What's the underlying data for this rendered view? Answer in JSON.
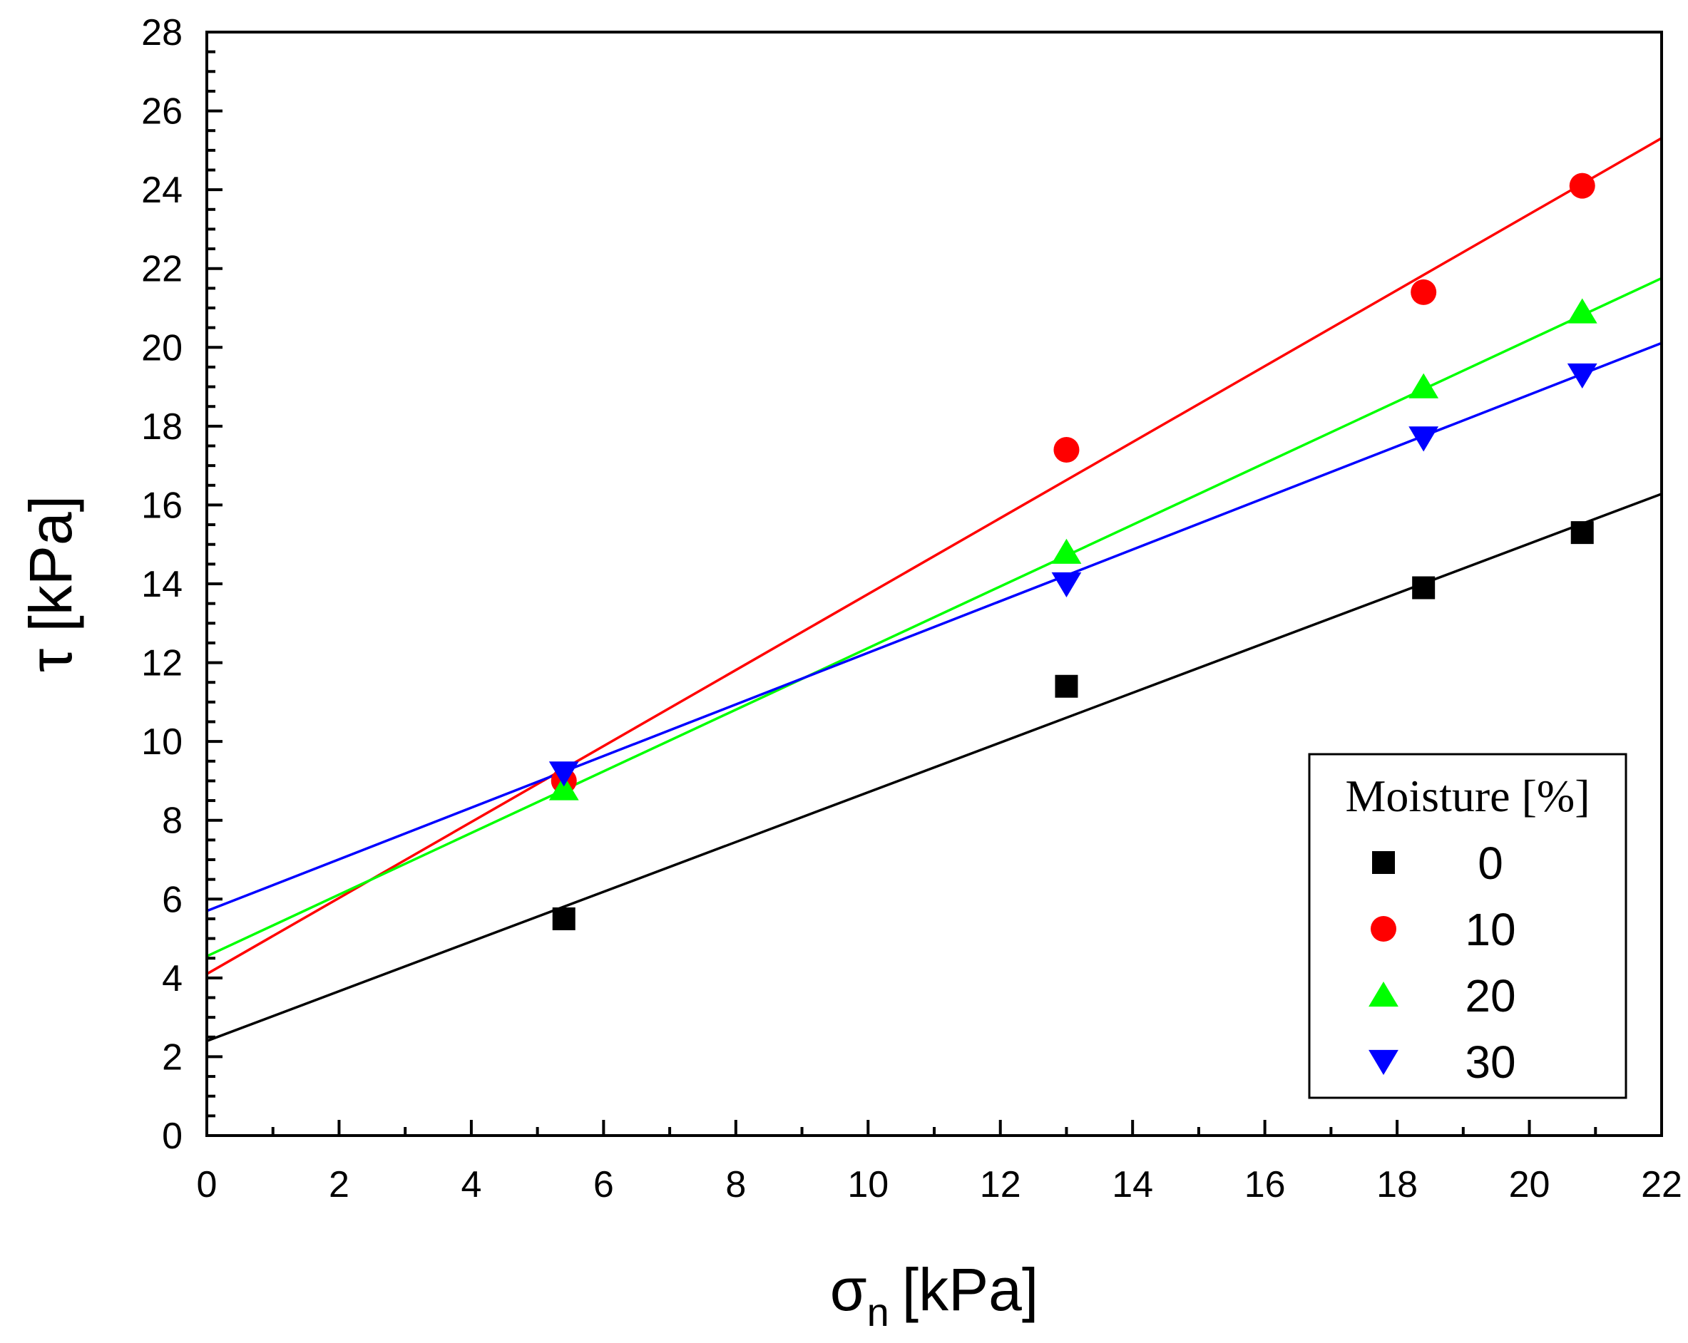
{
  "chart_data": {
    "type": "scatter",
    "title": "",
    "xlabel": "σ",
    "xlabel_sub": "n",
    "xlabel_unit": "[kPa]",
    "ylabel": "τ [kPa]",
    "xlim": [
      0,
      22
    ],
    "ylim": [
      0,
      28
    ],
    "x_ticks": [
      0,
      2,
      4,
      6,
      8,
      10,
      12,
      14,
      16,
      18,
      20,
      22
    ],
    "y_ticks": [
      0,
      2,
      4,
      6,
      8,
      10,
      12,
      14,
      16,
      18,
      20,
      22,
      24,
      26,
      28
    ],
    "x_tick_labels": [
      "0",
      "2",
      "4",
      "6",
      "8",
      "10",
      "12",
      "14",
      "16",
      "18",
      "20",
      "22"
    ],
    "y_tick_labels": [
      "0",
      "2",
      "4",
      "6",
      "8",
      "10",
      "12",
      "14",
      "16",
      "18",
      "20",
      "22",
      "24",
      "26",
      "28"
    ],
    "grid": false,
    "legend": {
      "title": "Moisture [%]",
      "position": "bottom-right"
    },
    "series": [
      {
        "name": "0",
        "color": "#000000",
        "marker": "square",
        "x": [
          5.4,
          13.0,
          18.4,
          20.8
        ],
        "y": [
          5.5,
          11.4,
          13.9,
          15.3
        ],
        "fit": {
          "intercept": 2.4,
          "slope": 0.631
        }
      },
      {
        "name": "10",
        "color": "#ff0000",
        "marker": "circle",
        "x": [
          5.4,
          13.0,
          18.4,
          20.8
        ],
        "y": [
          9.0,
          17.4,
          21.4,
          24.1
        ],
        "fit": {
          "intercept": 4.1,
          "slope": 0.964
        }
      },
      {
        "name": "20",
        "color": "#00ff00",
        "marker": "triangle-up",
        "x": [
          5.4,
          13.0,
          18.4,
          20.8
        ],
        "y": [
          8.8,
          14.8,
          19.0,
          20.9
        ],
        "fit": {
          "intercept": 4.55,
          "slope": 0.782
        }
      },
      {
        "name": "30",
        "color": "#0000ff",
        "marker": "triangle-down",
        "x": [
          5.4,
          13.0,
          18.4,
          20.8
        ],
        "y": [
          9.2,
          14.0,
          17.7,
          19.3
        ],
        "fit": {
          "intercept": 5.7,
          "slope": 0.655
        }
      }
    ]
  }
}
